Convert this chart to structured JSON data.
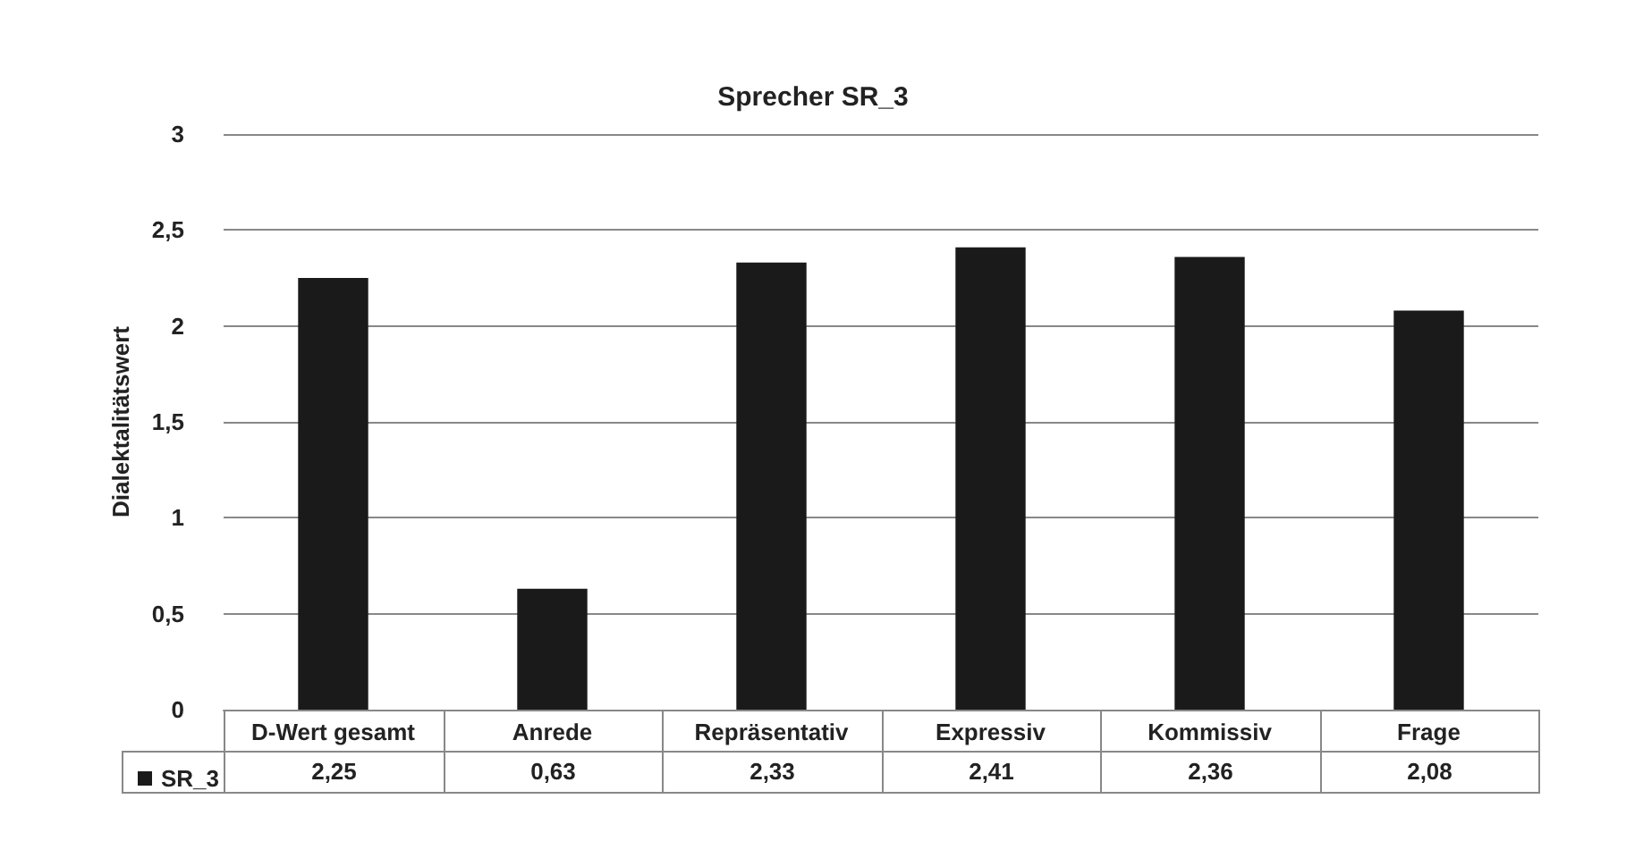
{
  "chart_data": {
    "type": "bar",
    "title": "Sprecher SR_3",
    "ylabel": "Dialektalitätswert",
    "categories": [
      "D-Wert gesamt",
      "Anrede",
      "Repräsentativ",
      "Expressiv",
      "Kommissiv",
      "Frage"
    ],
    "series": [
      {
        "name": "SR_3",
        "color": "#1a1a1a",
        "values": [
          2.25,
          0.63,
          2.33,
          2.41,
          2.36,
          2.08
        ],
        "value_labels": [
          "2,25",
          "0,63",
          "2,33",
          "2,41",
          "2,36",
          "2,08"
        ]
      }
    ],
    "ylim": [
      0,
      3
    ],
    "yticks": [
      0,
      {
        "value": 0.5,
        "label": "0,5"
      },
      1,
      {
        "value": 1.5,
        "label": "1,5"
      },
      2,
      {
        "value": 2.5,
        "label": "2,5"
      },
      3
    ],
    "grid": "y",
    "legend": "bottom left"
  }
}
